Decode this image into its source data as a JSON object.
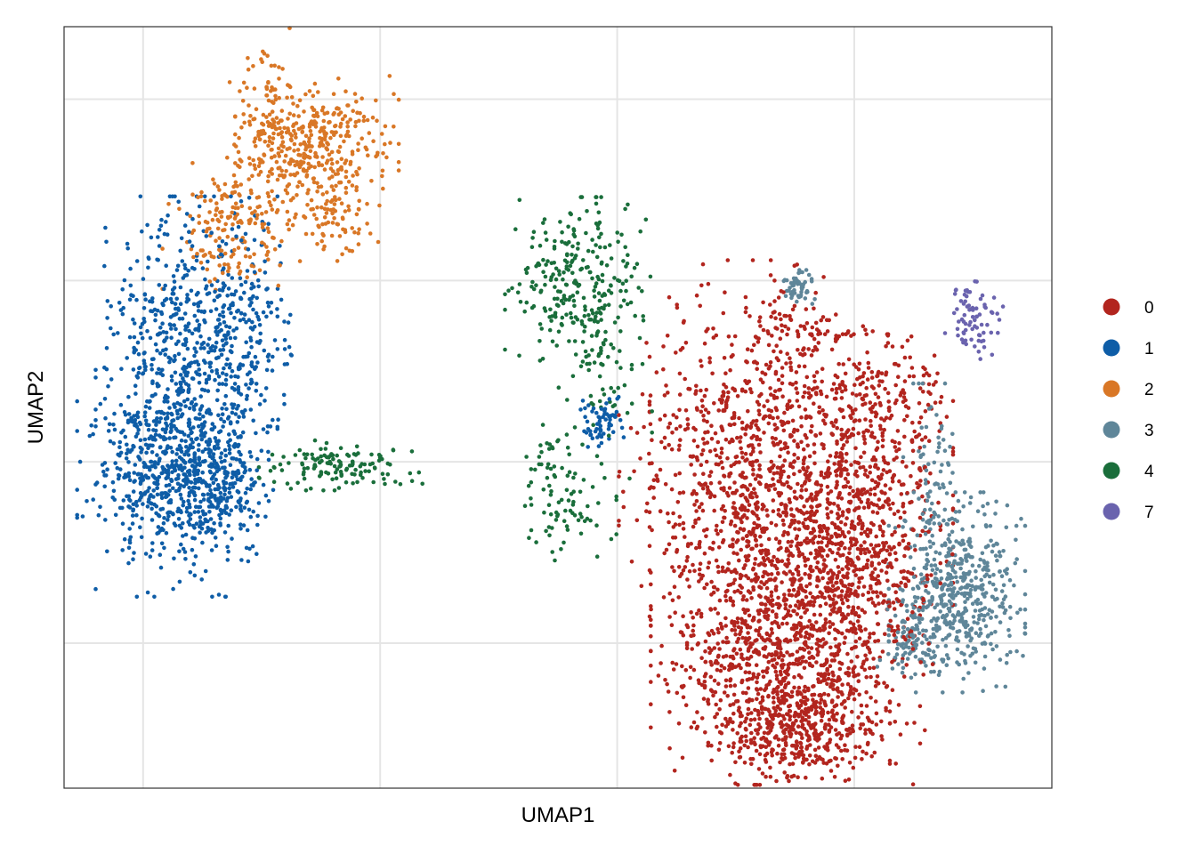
{
  "chart_data": {
    "type": "scatter",
    "title": "",
    "xlabel": "UMAP1",
    "ylabel": "UMAP2",
    "xlim": [
      -12,
      13
    ],
    "ylim": [
      -9,
      12
    ],
    "x_gridlines": [
      -10,
      -4,
      2,
      8
    ],
    "y_gridlines": [
      -5,
      0,
      5,
      10
    ],
    "tick_labels_shown": false,
    "grid": true,
    "legend_position": "right",
    "point_size": 2.3,
    "series": [
      {
        "name": "0",
        "color": "#B2251E",
        "approx_points": 3300,
        "blobs": [
          {
            "cx": 4.8,
            "cy": 0.5,
            "sx": 1.2,
            "sy": 2.2,
            "w": 0.1
          },
          {
            "cx": 6.5,
            "cy": -1.0,
            "sx": 1.6,
            "sy": 2.0,
            "w": 0.28
          },
          {
            "cx": 6.3,
            "cy": -5.0,
            "sx": 1.5,
            "sy": 1.8,
            "w": 0.3
          },
          {
            "cx": 8.2,
            "cy": -2.0,
            "sx": 1.0,
            "sy": 2.4,
            "w": 0.16
          },
          {
            "cx": 6.6,
            "cy": -7.3,
            "sx": 1.0,
            "sy": 0.7,
            "w": 0.11
          },
          {
            "cx": 6.4,
            "cy": 3.6,
            "sx": 0.5,
            "sy": 0.8,
            "w": 0.02
          },
          {
            "cx": 8.5,
            "cy": 1.9,
            "sx": 0.8,
            "sy": 0.8,
            "w": 0.03
          }
        ]
      },
      {
        "name": "1",
        "color": "#0E5DA7",
        "approx_points": 1550,
        "blobs": [
          {
            "cx": -8.9,
            "cy": 1.8,
            "sx": 1.0,
            "sy": 2.4,
            "w": 0.55
          },
          {
            "cx": -9.6,
            "cy": -0.4,
            "sx": 0.9,
            "sy": 0.9,
            "w": 0.2
          },
          {
            "cx": -8.2,
            "cy": -0.7,
            "sx": 0.6,
            "sy": 0.8,
            "w": 0.12
          },
          {
            "cx": -7.4,
            "cy": 3.8,
            "sx": 0.7,
            "sy": 1.3,
            "w": 0.09
          },
          {
            "cx": 1.6,
            "cy": 1.1,
            "sx": 0.25,
            "sy": 0.3,
            "w": 0.04
          }
        ]
      },
      {
        "name": "2",
        "color": "#D97726",
        "approx_points": 700,
        "blobs": [
          {
            "cx": -5.6,
            "cy": 8.8,
            "sx": 0.9,
            "sy": 0.8,
            "w": 0.45
          },
          {
            "cx": -6.8,
            "cy": 9.2,
            "sx": 0.5,
            "sy": 1.2,
            "w": 0.2
          },
          {
            "cx": -7.9,
            "cy": 6.4,
            "sx": 0.7,
            "sy": 0.8,
            "w": 0.22
          },
          {
            "cx": -5.2,
            "cy": 6.8,
            "sx": 0.5,
            "sy": 0.7,
            "w": 0.13
          }
        ]
      },
      {
        "name": "3",
        "color": "#5F8699",
        "approx_points": 720,
        "blobs": [
          {
            "cx": 10.6,
            "cy": -3.6,
            "sx": 0.75,
            "sy": 1.2,
            "w": 0.7
          },
          {
            "cx": 9.5,
            "cy": -5.0,
            "sx": 0.4,
            "sy": 0.5,
            "w": 0.12
          },
          {
            "cx": 10.0,
            "cy": -0.6,
            "sx": 0.35,
            "sy": 1.2,
            "w": 0.12
          },
          {
            "cx": 6.6,
            "cy": 4.8,
            "sx": 0.2,
            "sy": 0.25,
            "w": 0.06
          }
        ]
      },
      {
        "name": "4",
        "color": "#1A6E3B",
        "approx_points": 550,
        "blobs": [
          {
            "cx": 1.0,
            "cy": 5.0,
            "sx": 0.8,
            "sy": 1.0,
            "w": 0.45
          },
          {
            "cx": -5.0,
            "cy": -0.1,
            "sx": 0.9,
            "sy": 0.3,
            "w": 0.27
          },
          {
            "cx": 0.6,
            "cy": -0.9,
            "sx": 0.6,
            "sy": 0.9,
            "w": 0.16
          },
          {
            "cx": 1.5,
            "cy": 2.3,
            "sx": 0.6,
            "sy": 1.2,
            "w": 0.12
          }
        ]
      },
      {
        "name": "7",
        "color": "#6A63AE",
        "approx_points": 75,
        "blobs": [
          {
            "cx": 11.0,
            "cy": 4.1,
            "sx": 0.35,
            "sy": 0.55,
            "w": 1.0
          }
        ]
      }
    ]
  }
}
